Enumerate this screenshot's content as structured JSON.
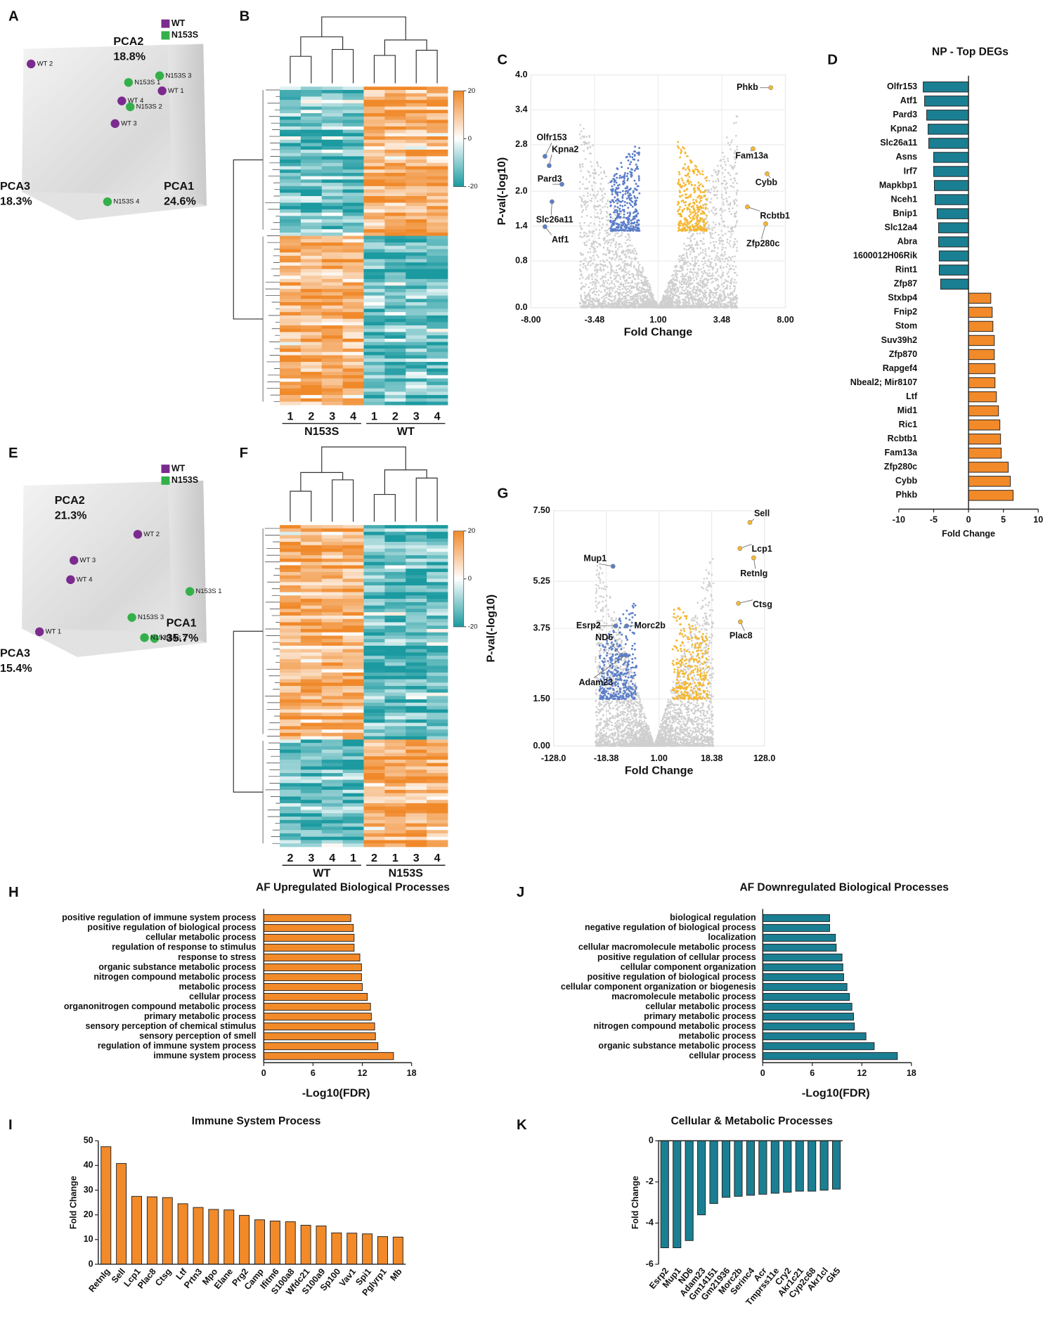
{
  "chart_data": [
    {
      "panel": "A",
      "type": "pca3d",
      "axes": [
        {
          "name": "PCA1",
          "variance": "24.6%"
        },
        {
          "name": "PCA2",
          "variance": "18.8%"
        },
        {
          "name": "PCA3",
          "variance": "18.3%"
        }
      ],
      "series": [
        {
          "name": "WT",
          "color": "#7b2a8e",
          "points": [
            "WT 1",
            "WT 2",
            "WT 3",
            "WT 4"
          ]
        },
        {
          "name": "N153S",
          "color": "#34b04a",
          "points": [
            "N153S 1",
            "N153S 2",
            "N153S 3",
            "N153S 4"
          ]
        }
      ]
    },
    {
      "panel": "B",
      "type": "heatmap",
      "columns": [
        "1",
        "2",
        "3",
        "4",
        "1",
        "2",
        "3",
        "4"
      ],
      "groups": [
        {
          "name": "N153S",
          "span": 4
        },
        {
          "name": "WT",
          "span": 4
        }
      ],
      "colorbar": {
        "lim": [
          -20,
          20
        ],
        "ticks": [
          20,
          0,
          -20
        ]
      },
      "colors": [
        "#1b9aa0",
        "#ffffff",
        "#f0892a"
      ]
    },
    {
      "panel": "C",
      "type": "volcano",
      "xlabel": "Fold Change",
      "ylabel": "P-val(-log10)",
      "xlim": [
        -8,
        8
      ],
      "ylim": [
        0,
        4
      ],
      "xticks": [
        {
          "value": -8,
          "label": "-8.00"
        },
        {
          "value": -3.48,
          "label": "-3.48"
        },
        {
          "value": 1,
          "label": "1.00"
        },
        {
          "value": 3.48,
          "label": "3.48"
        },
        {
          "value": 8,
          "label": "8.00"
        }
      ],
      "yticks": [
        {
          "value": 0,
          "label": "0.0"
        },
        0.8,
        1.4,
        {
          "value": 2,
          "label": "2.0"
        },
        2.8,
        3.4,
        {
          "value": 4,
          "label": "4.0"
        }
      ],
      "colors": {
        "down": "#5b7ec9",
        "up": "#f5b731",
        "ns": "#cfcfcf"
      },
      "genes": {
        "names": [
          "Phkb",
          "Olfr153",
          "Kpna2",
          "Pard3",
          "Slc26a11",
          "Atf1",
          "Fam13a",
          "Cybb",
          "Rcbtb1",
          "Zfp280c"
        ],
        "x": [
          6.96,
          -7.0,
          -6.7,
          -5.8,
          -6.5,
          -7.0,
          5.7,
          6.7,
          5.3,
          6.6
        ],
        "y": [
          3.78,
          2.6,
          2.44,
          2.12,
          1.82,
          1.39,
          2.73,
          2.3,
          1.73,
          1.44
        ]
      }
    },
    {
      "panel": "D",
      "type": "hbar",
      "title": "NP - Top DEGs",
      "xlabel": "Fold Change",
      "categories": [
        "Olfr153",
        "Atf1",
        "Pard3",
        "Kpna2",
        "Slc26a11",
        "Asns",
        "Irf7",
        "Mapkbp1",
        "Nceh1",
        "Bnip1",
        "Slc12a4",
        "Abra",
        "1600012H06Rik",
        "Rint1",
        "Zfp87",
        "Stxbp4",
        "Fnip2",
        "Stom",
        "Suv39h2",
        "Zfp870",
        "Rapgef4",
        "Nbeal2; Mir8107",
        "Ltf",
        "Mid1",
        "Ric1",
        "Rcbtb1",
        "Fam13a",
        "Zfp280c",
        "Cybb",
        "Phkb"
      ],
      "values": [
        -6.5,
        -6.3,
        -6.0,
        -5.8,
        -5.7,
        -5.0,
        -5.0,
        -4.9,
        -4.8,
        -4.5,
        -4.3,
        -4.3,
        -4.2,
        -4.2,
        -4.0,
        3.2,
        3.4,
        3.5,
        3.7,
        3.7,
        3.8,
        3.8,
        4.0,
        4.3,
        4.5,
        4.6,
        4.7,
        5.7,
        6.0,
        6.4
      ],
      "color_negative": "#1a7f92",
      "color_positive": "#f28a2a",
      "xlim": [
        -10,
        10
      ],
      "xticks": [
        -10,
        -5,
        0,
        5,
        10
      ]
    },
    {
      "panel": "E",
      "type": "pca3d",
      "axes": [
        {
          "name": "PCA1",
          "variance": "35.7%"
        },
        {
          "name": "PCA2",
          "variance": "21.3%"
        },
        {
          "name": "PCA3",
          "variance": "15.4%"
        }
      ],
      "series": [
        {
          "name": "WT",
          "color": "#7b2a8e",
          "points": [
            "WT 1",
            "WT 2",
            "WT 3",
            "WT 4"
          ]
        },
        {
          "name": "N153S",
          "color": "#34b04a",
          "points": [
            "N153S 1",
            "N153S 2",
            "N153S 3",
            "N153S 4"
          ]
        }
      ]
    },
    {
      "panel": "F",
      "type": "heatmap",
      "columns": [
        "2",
        "3",
        "4",
        "1",
        "2",
        "1",
        "3",
        "4"
      ],
      "groups": [
        {
          "name": "WT",
          "span": 4
        },
        {
          "name": "N153S",
          "span": 4
        }
      ],
      "colorbar": {
        "lim": [
          -20,
          20
        ],
        "ticks": [
          20,
          0,
          -20
        ]
      },
      "colors": [
        "#1b9aa0",
        "#ffffff",
        "#f0892a"
      ]
    },
    {
      "panel": "G",
      "type": "volcano",
      "xlabel": "Fold Change",
      "ylabel": "P-val(-log10)",
      "xlim": [
        -128,
        128
      ],
      "ylim": [
        0,
        7.5
      ],
      "xticks": [
        {
          "value": -128,
          "label": "-128.0"
        },
        {
          "value": -18.38,
          "label": "-18.38"
        },
        {
          "value": 1,
          "label": "1.00"
        },
        18.38,
        {
          "value": 128,
          "label": "128.0"
        }
      ],
      "yticks": [
        {
          "value": 0,
          "label": "0.00"
        },
        {
          "value": 1.5,
          "label": "1.50"
        },
        3.75,
        5.25,
        {
          "value": 7.5,
          "label": "7.50"
        }
      ],
      "colors": {
        "down": "#5b7ec9",
        "up": "#f5b731",
        "ns": "#cfcfcf"
      },
      "genes": {
        "names": [
          "Sell",
          "Lcp1",
          "Retnlg",
          "Ctsg",
          "Plac8",
          "Mup1",
          "Esrp2",
          "Morc2b",
          "ND6",
          "Adam23"
        ],
        "x": [
          97.8,
          77.1,
          105.7,
          74,
          78,
          -15.9,
          -14.9,
          -10.9,
          -12.8,
          -11.2
        ],
        "y": [
          7.13,
          6.3,
          6.0,
          4.55,
          3.96,
          5.73,
          3.83,
          3.83,
          2.89,
          2.9
        ]
      }
    },
    {
      "panel": "H",
      "type": "hbar",
      "title": "AF Upregulated Biological Processes",
      "xlabel": "-Log10(FDR)",
      "categories": [
        "positive regulation of immune system process",
        "positive regulation of biological process",
        "cellular metabolic process",
        "regulation of response to stimulus",
        "response to stress",
        "organic substance metabolic process",
        "nitrogen compound metabolic process",
        "metabolic process",
        "cellular process",
        "organonitrogen compound metabolic process",
        "primary metabolic process",
        "sensory perception of chemical stimulus",
        "sensory perception of smell",
        "regulation of immune system process",
        "immune system process"
      ],
      "values": [
        10.6,
        10.9,
        11.0,
        11.0,
        11.7,
        11.9,
        11.9,
        12.0,
        12.6,
        13.0,
        13.1,
        13.5,
        13.6,
        13.9,
        15.8
      ],
      "color": "#f28a2a",
      "xlim": [
        0,
        18
      ],
      "xticks": [
        0,
        6,
        12,
        18
      ]
    },
    {
      "panel": "J",
      "type": "hbar",
      "title": "AF Downregulated Biological Processes",
      "xlabel": "-Log10(FDR)",
      "categories": [
        "biological regulation",
        "negative regulation of biological process",
        "localization",
        "cellular macromolecule metabolic process",
        "positive regulation of cellular process",
        "cellular component organization",
        "positive regulation of biological process",
        "cellular component organization or biogenesis",
        "macromolecule metabolic process",
        "cellular metabolic process",
        "primary metabolic process",
        "nitrogen compound metabolic process",
        "metabolic process",
        "organic substance metabolic process",
        "cellular process"
      ],
      "values": [
        8.1,
        8.1,
        8.8,
        8.9,
        9.6,
        9.7,
        9.8,
        10.2,
        10.5,
        10.8,
        11.0,
        11.1,
        12.5,
        13.5,
        16.3
      ],
      "color": "#1a7f92",
      "xlim": [
        0,
        18
      ],
      "xticks": [
        0,
        6,
        12,
        18
      ]
    },
    {
      "panel": "I",
      "type": "vbar",
      "title": "Immune System Process",
      "ylabel": "Fold Change",
      "categories": [
        "Retnlg",
        "Sell",
        "Lcp1",
        "Plac8",
        "Ctsg",
        "Ltf",
        "Prtn3",
        "Mpo",
        "Elane",
        "Prg2",
        "Camp",
        "Ifitm6",
        "S100a8",
        "Wfdc21",
        "S100a9",
        "Sp100",
        "Vav1",
        "Spi1",
        "Pglyrp1",
        "Mb"
      ],
      "values": [
        47.6,
        40.8,
        27.5,
        27.3,
        27.0,
        24.5,
        23.0,
        22.2,
        22.0,
        19.8,
        18.0,
        17.5,
        17.2,
        15.8,
        15.5,
        12.7,
        12.6,
        12.3,
        11.2,
        11.0
      ],
      "color": "#f28a2a",
      "ylim": [
        0,
        50
      ],
      "yticks": [
        0,
        10,
        20,
        30,
        40,
        50
      ]
    },
    {
      "panel": "K",
      "type": "vbar",
      "title": "Cellular & Metabolic Processes",
      "ylabel": "Fold Change",
      "categories": [
        "Esrp2",
        "Mup1",
        "ND6",
        "Adam23",
        "Gm14151",
        "Gm21936",
        "Morc2b",
        "Serinc4",
        "Acr",
        "Tmprss11e",
        "Cry2",
        "Akr1c21",
        "Cyp2c68",
        "Akr1cl",
        "Gk5"
      ],
      "values": [
        -5.2,
        -5.2,
        -4.85,
        -3.6,
        -3.05,
        -2.75,
        -2.7,
        -2.65,
        -2.6,
        -2.55,
        -2.5,
        -2.45,
        -2.45,
        -2.4,
        -2.35
      ],
      "color": "#1a7f92",
      "ylim": [
        -6,
        0
      ],
      "yticks": [
        0,
        -2,
        -4,
        -6
      ]
    }
  ]
}
